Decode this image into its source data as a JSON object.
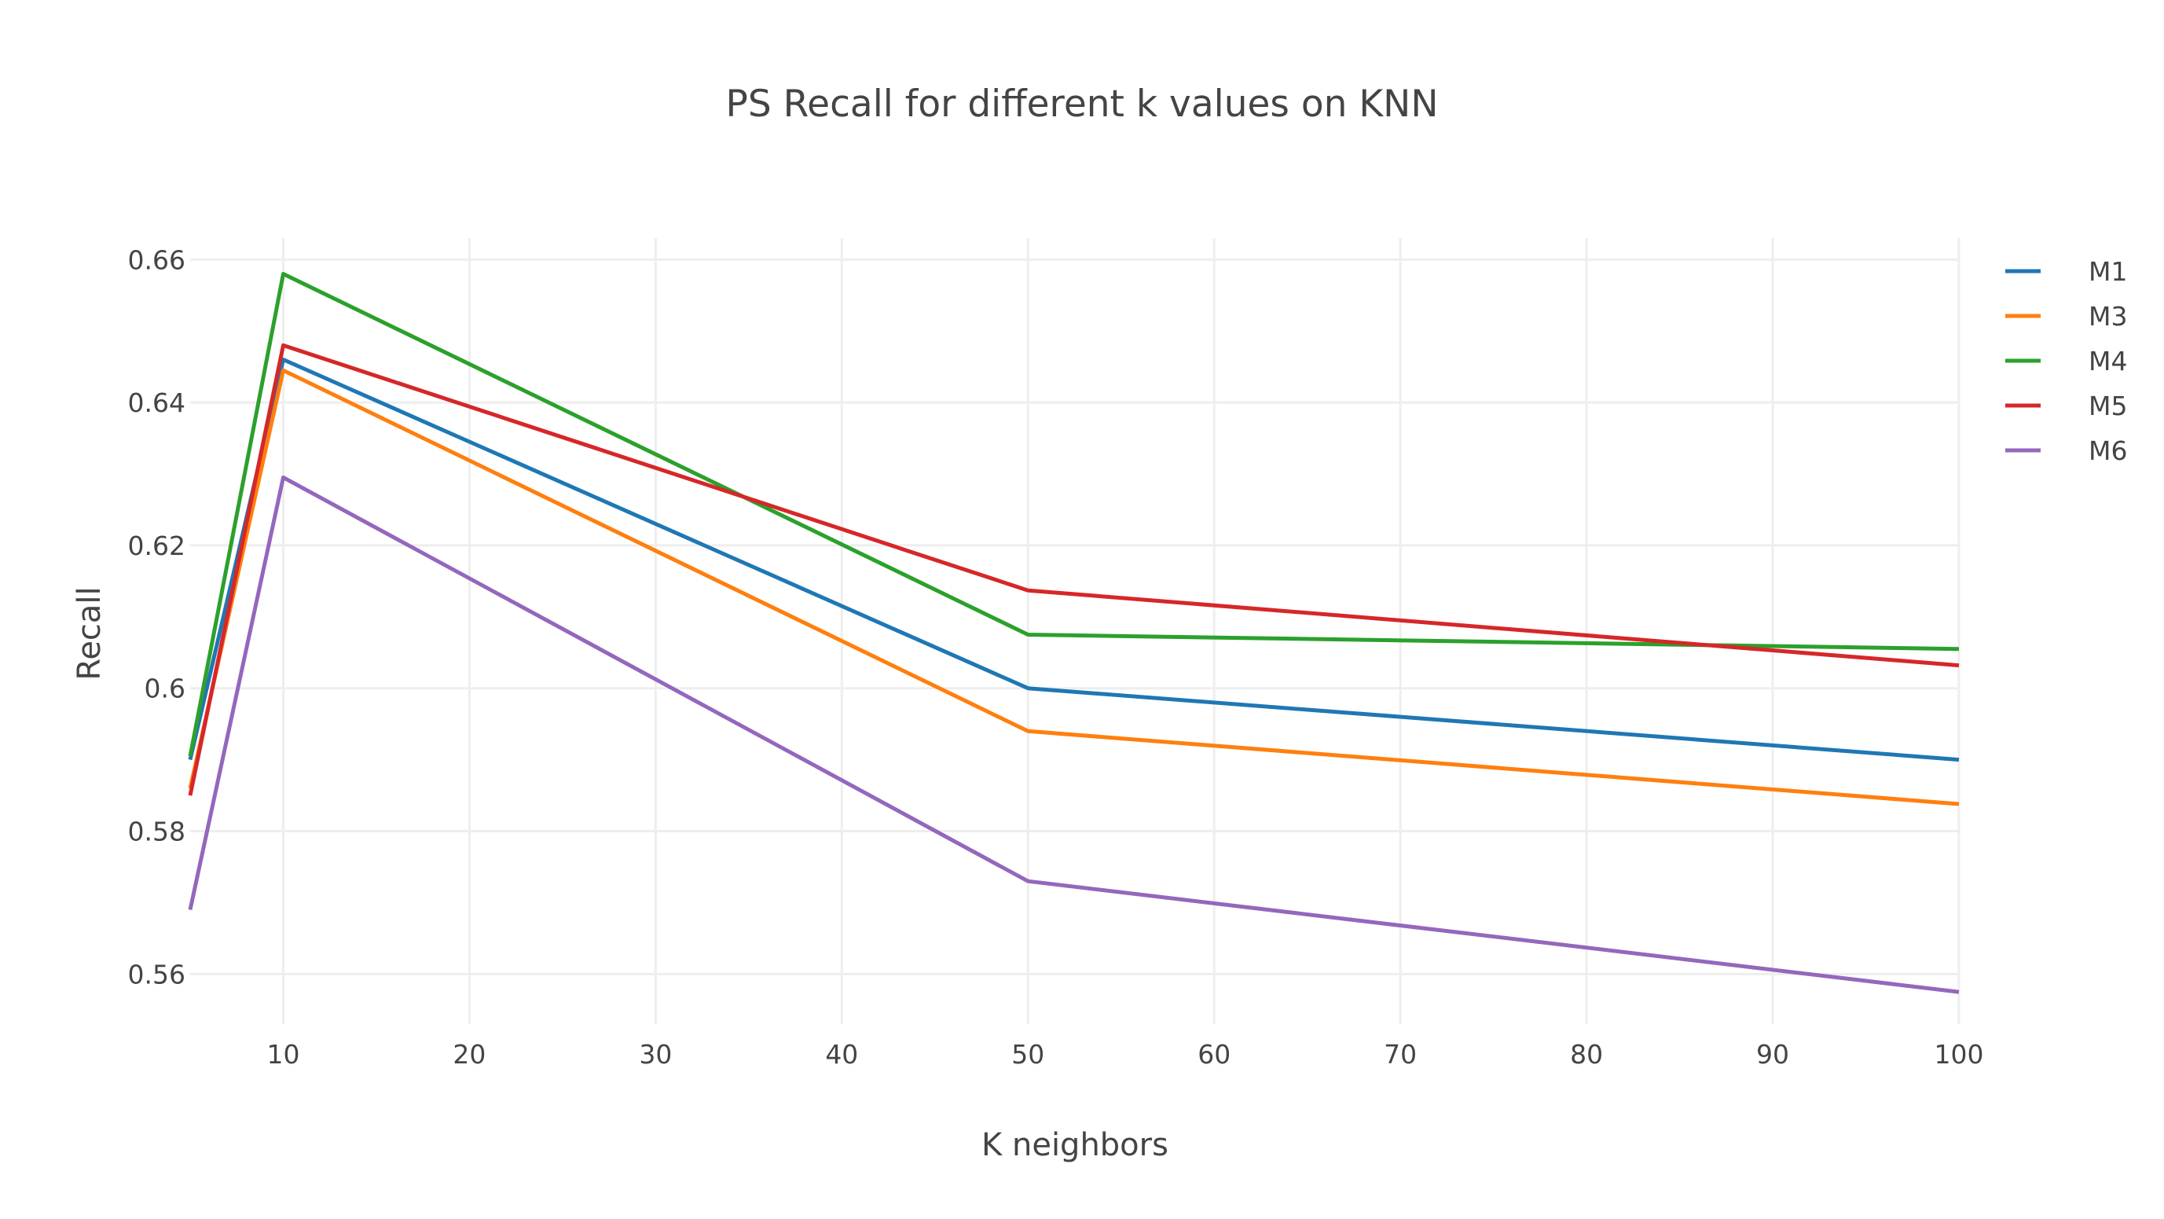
{
  "chart_data": {
    "type": "line",
    "title": "PS Recall for different k values on KNN",
    "xlabel": "K neighbors",
    "ylabel": "Recall",
    "xlim": [
      5,
      100
    ],
    "ylim": [
      0.553,
      0.663
    ],
    "x_ticks": [
      10,
      20,
      30,
      40,
      50,
      60,
      70,
      80,
      90,
      100
    ],
    "y_ticks": [
      0.56,
      0.58,
      0.6,
      0.62,
      0.64,
      0.66
    ],
    "y_tick_labels": [
      "0.56",
      "0.58",
      "0.6",
      "0.62",
      "0.64",
      "0.66"
    ],
    "x": [
      5,
      10,
      50,
      100
    ],
    "grid": true,
    "legend_position": "top-right",
    "series": [
      {
        "name": "M1",
        "color": "#1f77b4",
        "values": [
          0.59,
          0.646,
          0.6,
          0.59
        ]
      },
      {
        "name": "M3",
        "color": "#ff7f0e",
        "values": [
          0.586,
          0.6445,
          0.594,
          0.5838
        ]
      },
      {
        "name": "M4",
        "color": "#2ca02c",
        "values": [
          0.5905,
          0.658,
          0.6075,
          0.6055
        ]
      },
      {
        "name": "M5",
        "color": "#d62728",
        "values": [
          0.585,
          0.648,
          0.6137,
          0.6032
        ]
      },
      {
        "name": "M6",
        "color": "#9467bd",
        "values": [
          0.569,
          0.6295,
          0.573,
          0.5575
        ]
      }
    ]
  }
}
